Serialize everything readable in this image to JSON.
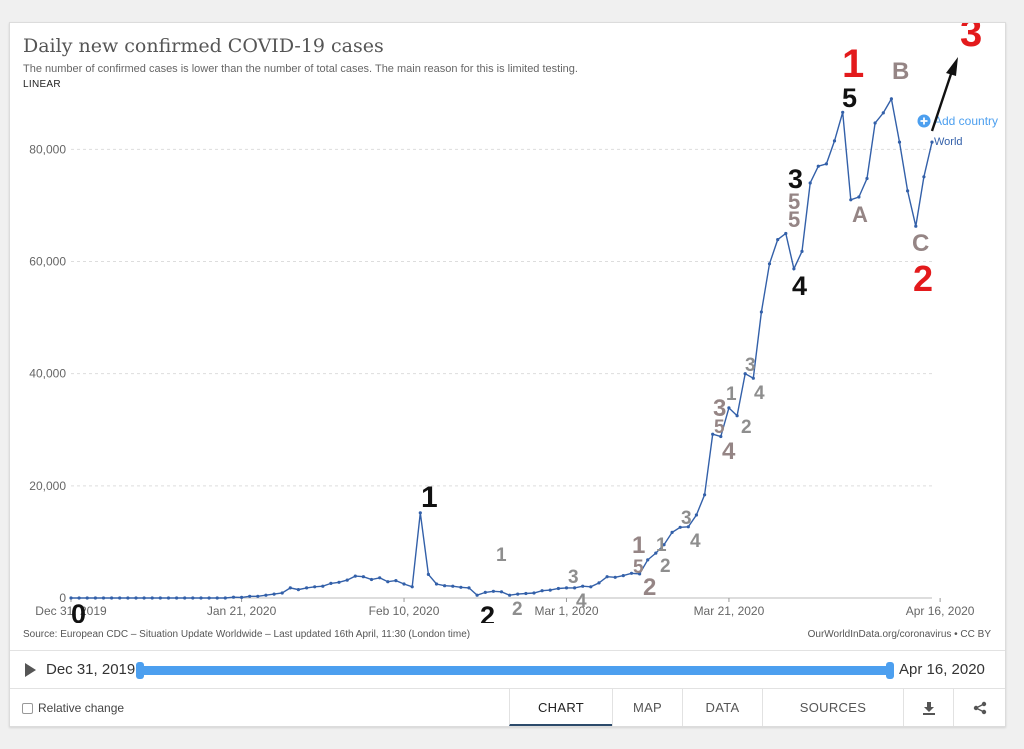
{
  "header": {
    "title": "Daily new confirmed COVID-19 cases",
    "subtitle": "The number of confirmed cases is lower than the number of total cases. The main reason for this is limited testing.",
    "scale_label": "LINEAR"
  },
  "chart_data": {
    "type": "line",
    "title": "Daily new confirmed COVID-19 cases",
    "xlabel": "",
    "ylabel": "",
    "x_range": [
      "2019-12-31",
      "2020-04-16"
    ],
    "ylim": [
      0,
      90000
    ],
    "y_ticks": [
      0,
      20000,
      40000,
      60000,
      80000
    ],
    "y_tick_labels": [
      "0",
      "20,000",
      "40,000",
      "60,000",
      "80,000"
    ],
    "x_tick_labels": [
      "Dec 31, 2019",
      "Jan 21, 2020",
      "Feb 10, 2020",
      "Mar 1, 2020",
      "Mar 21, 2020",
      "Apr 16, 2020"
    ],
    "grid": true,
    "series": [
      {
        "name": "World",
        "color": "#3360a9",
        "values": [
          0,
          0,
          0,
          0,
          0,
          0,
          0,
          0,
          0,
          0,
          0,
          0,
          0,
          0,
          0,
          0,
          0,
          0,
          0,
          0,
          150,
          100,
          300,
          300,
          500,
          700,
          900,
          1800,
          1500,
          1800,
          2000,
          2100,
          2600,
          2800,
          3200,
          3900,
          3800,
          3300,
          3600,
          2900,
          3100,
          2500,
          2000,
          15200,
          4200,
          2500,
          2200,
          2100,
          1900,
          1800,
          500,
          1000,
          1200,
          1100,
          500,
          700,
          800,
          900,
          1300,
          1400,
          1700,
          1800,
          1800,
          2100,
          2000,
          2700,
          3800,
          3700,
          4000,
          4400,
          4300,
          6800,
          8000,
          9500,
          11700,
          12600,
          12700,
          14800,
          18400,
          29200,
          28800,
          33900,
          32500,
          40000,
          39200,
          51000,
          59600,
          63900,
          65000,
          58700,
          61800,
          74000,
          77000,
          77400,
          81500,
          86600,
          71000,
          71500,
          74800,
          84700,
          86500,
          89000,
          81300,
          72600,
          66300,
          75100,
          81300
        ]
      }
    ],
    "annotations": [
      {
        "text": "0",
        "color": "#111111"
      },
      {
        "text": "1",
        "color": "#111111"
      },
      {
        "text": "2",
        "color": "#111111"
      },
      {
        "text": "1",
        "color": "#8e8e8e"
      },
      {
        "text": "2",
        "color": "#8e8e8e"
      },
      {
        "text": "3",
        "color": "#8e8e8e"
      },
      {
        "text": "4",
        "color": "#8e8e8e"
      },
      {
        "text": "1",
        "color": "#958585"
      },
      {
        "text": "5",
        "color": "#958585"
      },
      {
        "text": "2",
        "color": "#958585"
      },
      {
        "text": "1",
        "color": "#8e8e8e"
      },
      {
        "text": "2",
        "color": "#8e8e8e"
      },
      {
        "text": "3",
        "color": "#8e8e8e"
      },
      {
        "text": "4",
        "color": "#8e8e8e"
      },
      {
        "text": "3",
        "color": "#958585"
      },
      {
        "text": "5",
        "color": "#958585"
      },
      {
        "text": "4",
        "color": "#958585"
      },
      {
        "text": "1",
        "color": "#8e8e8e"
      },
      {
        "text": "2",
        "color": "#8e8e8e"
      },
      {
        "text": "3",
        "color": "#8e8e8e"
      },
      {
        "text": "4",
        "color": "#8e8e8e"
      },
      {
        "text": "3",
        "color": "#111111"
      },
      {
        "text": "5",
        "color": "#958585"
      },
      {
        "text": "5",
        "color": "#958585"
      },
      {
        "text": "4",
        "color": "#111111"
      },
      {
        "text": "1",
        "color": "#e31a1c"
      },
      {
        "text": "5",
        "color": "#111111"
      },
      {
        "text": "A",
        "color": "#958585"
      },
      {
        "text": "B",
        "color": "#958585"
      },
      {
        "text": "C",
        "color": "#958585"
      },
      {
        "text": "2",
        "color": "#e31a1c"
      },
      {
        "text": "3",
        "color": "#e31a1c"
      }
    ]
  },
  "legend": {
    "add_country_label": "Add country",
    "series_label": "World"
  },
  "footer": {
    "source": "Source: European CDC – Situation Update Worldwide – Last updated 16th April, 11:30 (London time)",
    "credit": "OurWorldInData.org/coronavirus • CC BY"
  },
  "timeline": {
    "start_label": "Dec 31, 2019",
    "end_label": "Apr 16, 2020"
  },
  "controls": {
    "relative_change_label": "Relative change",
    "tabs": [
      "CHART",
      "MAP",
      "DATA",
      "SOURCES"
    ],
    "active_tab": "CHART",
    "download_icon": "download-icon",
    "share_icon": "share-icon"
  },
  "colors": {
    "line": "#3360a9",
    "accent": "#4c9fef",
    "annotation_red": "#e31a1c"
  }
}
